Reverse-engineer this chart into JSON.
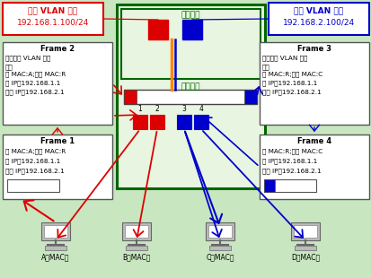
{
  "bg_color": "#c8e6c0",
  "vlan_red_label": "红色 VLAN 接口",
  "vlan_red_ip": "192.168.1.100/24",
  "vlan_blue_label": "蓝色 VLAN 接口",
  "vlan_blue_ip": "192.168.2.100/24",
  "router_label": "路由模块",
  "switch_label": "交换模块",
  "frame1_title": "Frame 1",
  "frame1_line1": "源 MAC:A;目标 MAC:R",
  "frame1_line2": "源 IP：192.168.1.1",
  "frame1_line3": "目标 IP：192.168.2.1",
  "frame2_title": "Frame 2",
  "frame2_line1": "附加红色 VLAN 识别",
  "frame2_line2": "信息",
  "frame2_line3": "源 MAC:A;目标 MAC:R",
  "frame2_line4": "源 IP：192.168.1.1",
  "frame2_line5": "目标 IP：192.168.2.1",
  "frame3_title": "Frame 3",
  "frame3_line1": "附加蓝色 VLAN 识别",
  "frame3_line2": "信息",
  "frame3_line3": "源 MAC:R;目标 MAC:C",
  "frame3_line4": "源 IP：192.168.1.1",
  "frame3_line5": "目标 IP：192.168.2.1",
  "frame4_title": "Frame 4",
  "frame4_line1": "源 MAC:R;目标 MAC:C",
  "frame4_line2": "源 IP：192.168.1.1",
  "frame4_line3": "目标 IP：192.168.2.1",
  "pc_a": "A（MAC）",
  "pc_b": "B（MAC）",
  "pc_c": "C（MAC）",
  "pc_d": "D（MAC）",
  "red": "#dd0000",
  "blue": "#0000cc",
  "orange": "#ff8800",
  "dark_green": "#006600",
  "mid_green": "#008800",
  "box_face": "#e8f5e0",
  "white": "#ffffff",
  "dark": "#222222"
}
